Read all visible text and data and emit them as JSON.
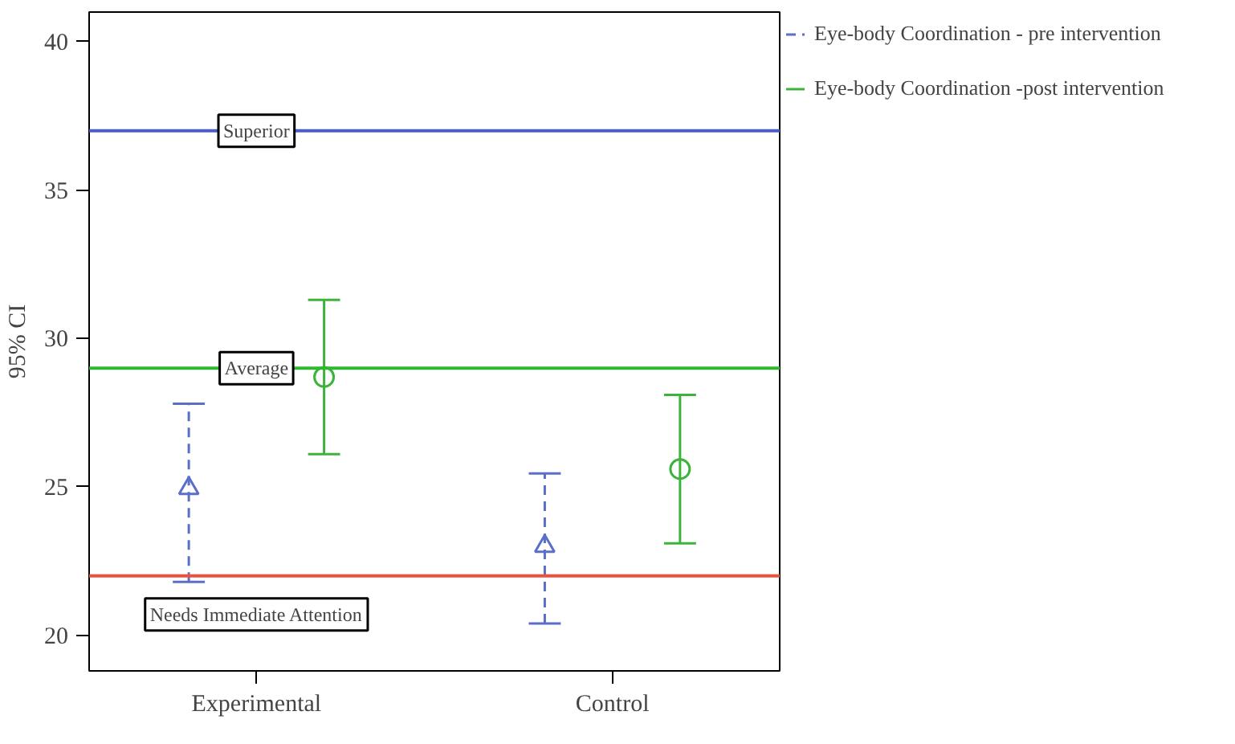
{
  "chart_data": {
    "type": "scatter",
    "ylabel": "95% CI",
    "categories": [
      "Experimental",
      "Control"
    ],
    "ylim": [
      18.8,
      41.0
    ],
    "yticks": [
      20,
      25,
      30,
      35,
      40
    ],
    "series": [
      {
        "name": "Eye-body Coordination - pre intervention",
        "color": "#5b6fc8",
        "marker": "triangle",
        "line_style": "dashed",
        "values": [
          24.95,
          23.0
        ],
        "errors": [
          [
            21.8,
            27.8
          ],
          [
            20.4,
            25.45
          ]
        ]
      },
      {
        "name": "Eye-body Coordination -post intervention",
        "color": "#3cb43c",
        "marker": "circle",
        "line_style": "solid",
        "values": [
          28.7,
          25.6
        ],
        "errors": [
          [
            26.1,
            31.3
          ],
          [
            23.1,
            28.1
          ]
        ]
      }
    ],
    "ref_lines": [
      {
        "axis": "y",
        "value": 37,
        "label": "Superior",
        "color": "#4a5ccc"
      },
      {
        "axis": "y",
        "value": 29,
        "label": "Average",
        "color": "#2db82d"
      },
      {
        "axis": "y",
        "value": 22,
        "label": "Needs Immediate Attention",
        "color": "#f0503c"
      }
    ],
    "legend": "right",
    "grid": false
  }
}
